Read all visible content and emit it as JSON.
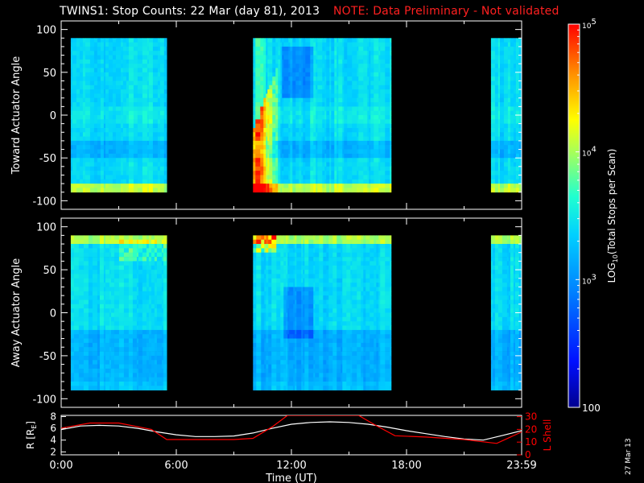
{
  "title": {
    "main": "TWINS1: Stop Counts: 22 Mar (day  81), 2013",
    "note": "NOTE: Data Preliminary - Not validated"
  },
  "stamp": "27 Mar 13",
  "colors": {
    "background": "#000000",
    "axis": "#ffffff",
    "r_line": "#ffffff",
    "lshell_line": "#ff0000",
    "note_text": "#ff2020"
  },
  "chart_data": [
    {
      "type": "heatmap",
      "panel": "toward",
      "ylabel": "Toward Actuator Angle",
      "ylim": [
        -110,
        110
      ],
      "yticks": [
        100,
        50,
        0,
        -50,
        -100
      ],
      "xlim": [
        0,
        24
      ],
      "angle_coverage": [
        -90,
        90
      ],
      "data_intervals_hours": [
        [
          0.5,
          5.5
        ],
        [
          10.0,
          17.2
        ],
        [
          22.4,
          24.0
        ]
      ],
      "colormap": "log10 counts, blue (low) to red (high)"
    },
    {
      "type": "heatmap",
      "panel": "away",
      "ylabel": "Away Actuator Angle",
      "ylim": [
        -110,
        110
      ],
      "yticks": [
        100,
        50,
        0,
        -50,
        -100
      ],
      "xlim": [
        0,
        24
      ],
      "angle_coverage": [
        -90,
        90
      ],
      "data_intervals_hours": [
        [
          0.5,
          5.5
        ],
        [
          10.0,
          17.2
        ],
        [
          22.4,
          24.0
        ]
      ],
      "colormap": "log10 counts, blue (low) to red (high)"
    },
    {
      "type": "line",
      "panel": "ephemeris",
      "xlabel": "Time (UT)",
      "xticks": [
        "0:00",
        "6:00",
        "12:00",
        "18:00",
        "23:59"
      ],
      "xlim": [
        0,
        24
      ],
      "left_axis": {
        "label": "R [R",
        "label_sub": "E",
        "label_end": "]",
        "ylim": [
          1.5,
          8.2
        ],
        "yticks": [
          8,
          6,
          4,
          2
        ]
      },
      "right_axis": {
        "label": "L Shell",
        "ylim": [
          0,
          31
        ],
        "yticks": [
          30,
          20,
          10,
          0
        ]
      },
      "series": [
        {
          "name": "R [RE]",
          "x": [
            0,
            1,
            2,
            3,
            4,
            5,
            6,
            7,
            8,
            9,
            10,
            11,
            12,
            13,
            14,
            15,
            16,
            17,
            18,
            19,
            20,
            21,
            22,
            23,
            24
          ],
          "y": [
            5.8,
            6.4,
            6.5,
            6.4,
            6.0,
            5.4,
            4.9,
            4.6,
            4.6,
            4.7,
            5.2,
            6.0,
            6.7,
            7.0,
            7.1,
            7.0,
            6.7,
            6.2,
            5.6,
            5.1,
            4.6,
            4.2,
            4.0,
            4.8,
            5.6
          ]
        },
        {
          "name": "L Shell",
          "x": [
            0,
            1.5,
            3,
            4.7,
            5.5,
            7,
            9,
            10,
            11,
            11.8,
            12.5,
            15.5,
            16.3,
            17.4,
            19,
            21,
            22.7,
            24
          ],
          "y": [
            21,
            25,
            25,
            20,
            12,
            12,
            12,
            13,
            22,
            31,
            31,
            31,
            24,
            15,
            14,
            12,
            9,
            18
          ]
        }
      ]
    }
  ],
  "colorbar": {
    "label_pre": "LOG",
    "label_sub": "10",
    "label_post": "(Total Stops per Scan)",
    "min": 100,
    "max": 100000,
    "ticks": [
      {
        "value": 100000,
        "base": "10",
        "exp": "5"
      },
      {
        "value": 10000,
        "base": "10",
        "exp": "4"
      },
      {
        "value": 1000,
        "base": "10",
        "exp": "3"
      },
      {
        "value": 100,
        "plain": "100"
      }
    ]
  }
}
